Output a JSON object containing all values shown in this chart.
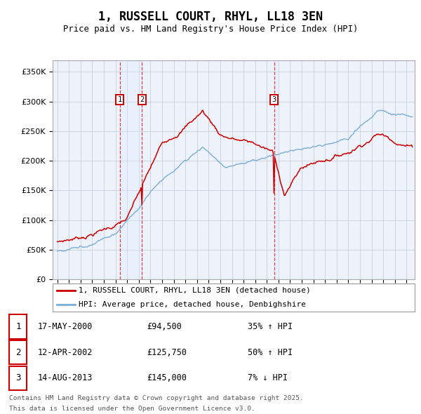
{
  "title": "1, RUSSELL COURT, RHYL, LL18 3EN",
  "subtitle": "Price paid vs. HM Land Registry's House Price Index (HPI)",
  "legend_line1": "1, RUSSELL COURT, RHYL, LL18 3EN (detached house)",
  "legend_line2": "HPI: Average price, detached house, Denbighshire",
  "transactions": [
    {
      "num": 1,
      "date": "17-MAY-2000",
      "price": "£94,500",
      "pct": "35%",
      "dir": "↑"
    },
    {
      "num": 2,
      "date": "12-APR-2002",
      "price": "£125,750",
      "pct": "50%",
      "dir": "↑"
    },
    {
      "num": 3,
      "date": "14-AUG-2013",
      "price": "£145,000",
      "pct": "7%",
      "dir": "↓"
    }
  ],
  "footnote1": "Contains HM Land Registry data © Crown copyright and database right 2025.",
  "footnote2": "This data is licensed under the Open Government Licence v3.0.",
  "red_color": "#cc0000",
  "blue_color": "#7bafd4",
  "marker_rect_color": "#cc0000",
  "vline_color": "#dd4444",
  "shade_color": "#ddeeff",
  "background_color": "#edf2fb",
  "ylim": [
    0,
    370000
  ],
  "yticks": [
    0,
    50000,
    100000,
    150000,
    200000,
    250000,
    300000,
    350000
  ],
  "xlim_start": 1994.6,
  "xlim_end": 2025.7,
  "xtick_years": [
    1995,
    1996,
    1997,
    1998,
    1999,
    2000,
    2001,
    2002,
    2003,
    2004,
    2005,
    2006,
    2007,
    2008,
    2009,
    2010,
    2011,
    2012,
    2013,
    2014,
    2015,
    2016,
    2017,
    2018,
    2019,
    2020,
    2021,
    2022,
    2023,
    2024,
    2025
  ],
  "marker_y": 303000,
  "t1_x": 2000.37,
  "t2_x": 2002.27,
  "t3_x": 2013.62
}
